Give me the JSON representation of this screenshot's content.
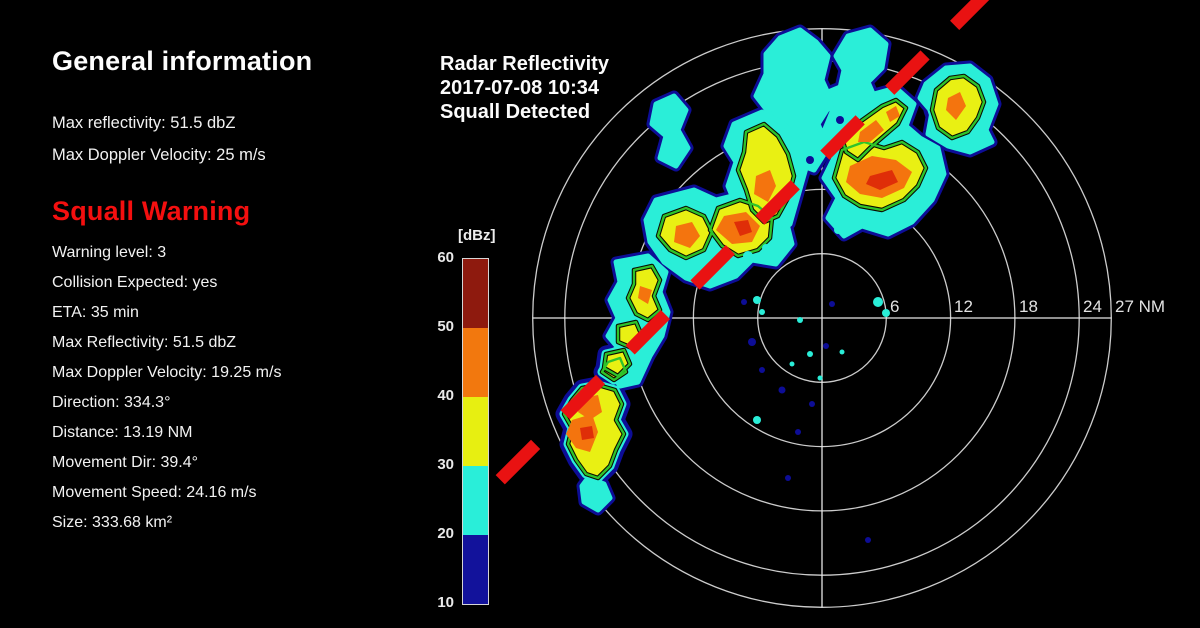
{
  "general_info": {
    "title": "General information",
    "lines": [
      "Max reflectivity: 51.5 dbZ",
      "Max Doppler Velocity: 25 m/s"
    ]
  },
  "squall_warning": {
    "title": "Squall Warning",
    "color": "#f40f0f",
    "lines": [
      "Warning level: 3",
      "Collision Expected: yes",
      "ETA: 35 min",
      "Max Reflectivity: 51.5 dbZ",
      "Max Doppler Velocity: 19.25 m/s",
      "Direction: 334.3°",
      "Distance: 13.19 NM",
      "Movement Dir: 39.4°",
      "Movement Speed: 24.16 m/s",
      "Size: 333.68 km²"
    ]
  },
  "radar": {
    "title_lines": [
      "Radar Reflectivity",
      "2017-07-08 10:34",
      "Squall Detected"
    ],
    "range_labels": [
      "6",
      "12",
      "18",
      "24",
      "27 NM"
    ],
    "ring_color": "#cccccc",
    "squall_line_color": "#e91212"
  },
  "colorbar": {
    "unit": "[dBz]",
    "ticks": [
      "60",
      "50",
      "40",
      "30",
      "20",
      "10"
    ],
    "segments": [
      {
        "range": "50-60",
        "color": "#8e1a0e"
      },
      {
        "range": "40-50",
        "color": "#f2780e"
      },
      {
        "range": "30-40",
        "color": "#e7ef11"
      },
      {
        "range": "20-30",
        "color": "#29eed9"
      },
      {
        "range": "10-20",
        "color": "#12129b"
      }
    ]
  },
  "chart_data": {
    "type": "heatmap",
    "subtype": "polar-radar-reflectivity",
    "title": "Radar Reflectivity",
    "timestamp": "2017-07-08 10:34",
    "status": "Squall Detected",
    "units": "dBz",
    "colorscale": {
      "ticks": [
        60,
        50,
        40,
        30,
        20,
        10
      ],
      "bins": [
        {
          "dbz": "50-60",
          "color": "#8e1a0e"
        },
        {
          "dbz": "40-50",
          "color": "#f2780e"
        },
        {
          "dbz": "30-40",
          "color": "#e7ef11"
        },
        {
          "dbz": "20-30",
          "color": "#29eed9"
        },
        {
          "dbz": "10-20",
          "color": "#12129b"
        }
      ]
    },
    "range_rings_nm": [
      6,
      12,
      18,
      24,
      27
    ],
    "max_range_nm": 27,
    "max_reflectivity_dbz": 51.5,
    "max_doppler_velocity_ms": 25,
    "squall": {
      "warning_level": 3,
      "collision_expected": "yes",
      "eta_min": 35,
      "max_reflectivity_dbz": 51.5,
      "max_doppler_velocity_ms": 19.25,
      "direction_deg": 334.3,
      "distance_nm": 13.19,
      "movement_dir_deg": 39.4,
      "movement_speed_ms": 24.16,
      "size_km2": 333.68
    },
    "squall_line_cells_estimated": [
      {
        "bearing_deg": 243,
        "range_nm": 23.8,
        "peak_dbz": 48
      },
      {
        "bearing_deg": 272,
        "range_nm": 17.9,
        "peak_dbz": 42
      },
      {
        "bearing_deg": 300,
        "range_nm": 14.5,
        "peak_dbz": 45
      },
      {
        "bearing_deg": 317,
        "range_nm": 11.2,
        "peak_dbz": 50
      },
      {
        "bearing_deg": 336,
        "range_nm": 13.1,
        "peak_dbz": 45
      },
      {
        "bearing_deg": 23,
        "range_nm": 13.5,
        "peak_dbz": 51.5
      },
      {
        "bearing_deg": 16,
        "range_nm": 18.2,
        "peak_dbz": 46
      },
      {
        "bearing_deg": 32,
        "range_nm": 23.2,
        "peak_dbz": 44
      }
    ],
    "annotation_line": {
      "style": "dashed",
      "color": "#e91212",
      "orientation": "SW-NE diagonal marking the squall line axis"
    },
    "legend_position": "left of radar",
    "grid": "polar range rings with crosshair"
  }
}
